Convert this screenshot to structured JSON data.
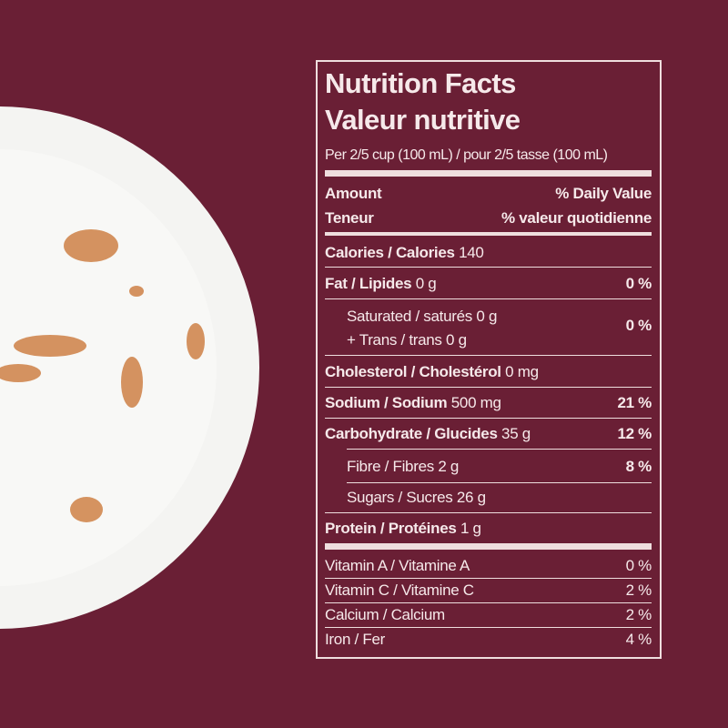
{
  "label": {
    "title": "Nutrition Facts",
    "title_fr": "Valeur nutritive",
    "serving": "Per 2/5 cup (100 mL) / pour 2/5 tasse (100 mL)",
    "header": {
      "amount": "Amount",
      "amount_fr": "Teneur",
      "dv": "% Daily Value",
      "dv_fr": "% valeur quotidienne"
    },
    "calories": {
      "label": "Calories / Calories",
      "amount": "140"
    },
    "rows": [
      {
        "label": "Fat / Lipides",
        "amount": "0 g",
        "dv": "0 %"
      },
      {
        "label": "Cholesterol / Cholestérol",
        "amount": "0 mg"
      },
      {
        "label": "Sodium / Sodium",
        "amount": "500 mg",
        "dv": "21 %"
      },
      {
        "label": "Carbohydrate / Glucides",
        "amount": "35 g",
        "dv": "12 %"
      },
      {
        "label": "Protein / Protéines",
        "amount": "1 g"
      }
    ],
    "sub_rows": {
      "saturated": {
        "line1": "Saturated / saturés 0 g",
        "line2": "+ Trans / trans 0 g",
        "dv": "0 %"
      },
      "fibre": {
        "label": "Fibre / Fibres 2 g",
        "dv": "8 %"
      },
      "sugars": {
        "label": "Sugars / Sucres 26 g"
      }
    },
    "vitamins": [
      {
        "label": "Vitamin A / Vitamine A",
        "dv": "0 %"
      },
      {
        "label": "Vitamin C / Vitamine C",
        "dv": "2 %"
      },
      {
        "label": "Calcium / Calcium",
        "dv": "2 %"
      },
      {
        "label": "Iron / Fer",
        "dv": "4 %"
      }
    ]
  }
}
